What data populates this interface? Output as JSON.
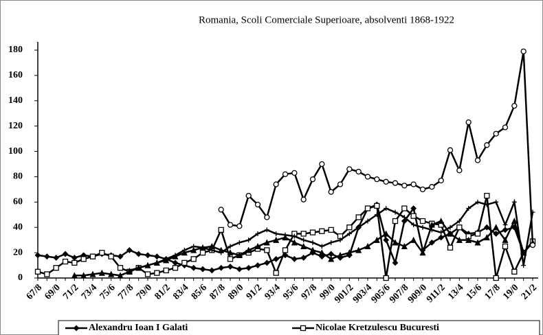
{
  "chart_data": {
    "type": "line",
    "title": "Romania, Scoli Comerciale Superioare,  absolventi 1868-1922",
    "categories": [
      "67/8",
      null,
      "69/0",
      null,
      "71/2",
      null,
      "73/4",
      null,
      "75/6",
      null,
      "77/8",
      null,
      "79/0",
      null,
      "81/2",
      null,
      "83/4",
      null,
      "85/6",
      null,
      "87/8",
      null,
      "89/0",
      null,
      "91/2",
      null,
      "93/4",
      null,
      "95/6",
      null,
      "97/8",
      null,
      "99/0",
      null,
      "901/2",
      null,
      "903/4",
      null,
      "905/6",
      null,
      "907/8",
      null,
      "909/0",
      null,
      "911/2",
      null,
      "13/4",
      null,
      "15/6",
      null,
      "17/8",
      null,
      "19/0",
      null,
      "21/2"
    ],
    "series": [
      {
        "name": "Alexandru Ioan I Galati",
        "color": "#000000",
        "marker": "diamond",
        "values": [
          18,
          17,
          16,
          19,
          16,
          18,
          17,
          19,
          18,
          17,
          22,
          19,
          18,
          17,
          15,
          12,
          10,
          8,
          7,
          6,
          8,
          9,
          7,
          8,
          10,
          12,
          15,
          18,
          15,
          16,
          20,
          17,
          19,
          16,
          18,
          40,
          55,
          58,
          30,
          12,
          45,
          55,
          22,
          28,
          32,
          35,
          40,
          35,
          36,
          40,
          35,
          38,
          40,
          20,
          28
        ]
      },
      {
        "name": "Nicolae Kretzulescu Bucuresti",
        "color": "#000000",
        "marker": "square",
        "values": [
          5,
          3,
          8,
          13,
          12,
          15,
          17,
          20,
          17,
          8,
          5,
          8,
          3,
          4,
          6,
          8,
          12,
          15,
          20,
          22,
          38,
          15,
          18,
          20,
          23,
          22,
          4,
          22,
          35,
          35,
          36,
          37,
          38,
          33,
          40,
          48,
          55,
          57,
          0,
          45,
          55,
          49,
          45,
          43,
          42,
          24,
          40,
          33,
          35,
          65,
          0,
          25,
          5,
          20,
          29
        ]
      },
      {
        "color": "#000000",
        "marker": "triangle",
        "values": [
          null,
          null,
          null,
          null,
          2,
          2,
          3,
          4,
          3,
          2,
          5,
          8,
          10,
          12,
          14,
          17,
          20,
          22,
          24,
          25,
          22,
          20,
          18,
          22,
          25,
          28,
          30,
          32,
          28,
          25,
          22,
          20,
          15,
          18,
          20,
          22,
          25,
          30,
          35,
          28,
          25,
          30,
          20,
          42,
          45,
          35,
          30,
          30,
          28,
          32,
          40,
          30,
          45,
          20,
          28
        ]
      },
      {
        "color": "#000000",
        "marker": "cross",
        "values": [
          null,
          null,
          null,
          null,
          null,
          null,
          null,
          null,
          null,
          null,
          6,
          8,
          10,
          12,
          15,
          18,
          22,
          25,
          24,
          22,
          20,
          25,
          28,
          30,
          35,
          38,
          35,
          34,
          33,
          30,
          28,
          25,
          28,
          30,
          35,
          40,
          45,
          50,
          55,
          52,
          48,
          42,
          40,
          38,
          36,
          40,
          45,
          55,
          60,
          58,
          60,
          42,
          60,
          10,
          52
        ]
      },
      {
        "color": "#000000",
        "marker": "circle",
        "values": [
          null,
          null,
          null,
          null,
          null,
          null,
          null,
          null,
          null,
          null,
          null,
          null,
          null,
          null,
          null,
          null,
          null,
          null,
          null,
          null,
          54,
          42,
          41,
          65,
          58,
          48,
          74,
          82,
          83,
          62,
          78,
          90,
          68,
          74,
          86,
          84,
          80,
          78,
          76,
          75,
          73,
          74,
          70,
          72,
          77,
          101,
          85,
          123,
          93,
          105,
          114,
          119,
          136,
          179,
          26
        ]
      }
    ],
    "ylim": [
      0,
      180
    ],
    "yticks": [
      0,
      20,
      40,
      60,
      80,
      100,
      120,
      140,
      160,
      180
    ],
    "grid": false
  }
}
